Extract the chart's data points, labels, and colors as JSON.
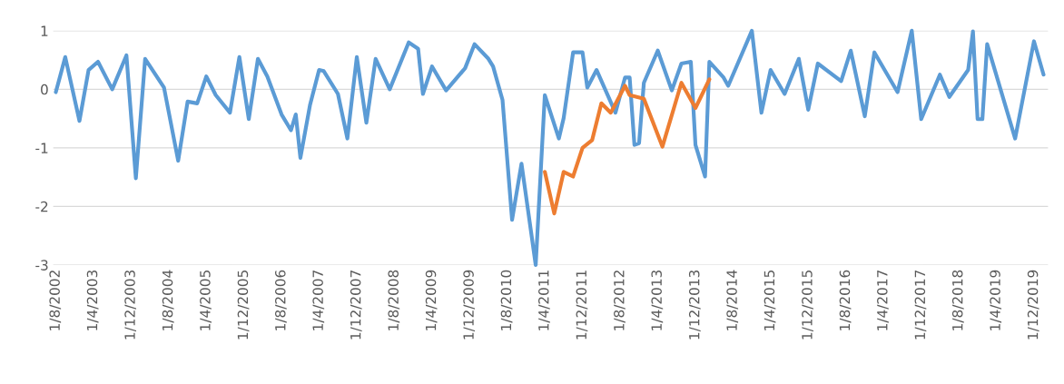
{
  "chart_data": {
    "type": "line",
    "series": [
      {
        "color": "#5b9bd5",
        "x": [
          "2002-08",
          "2002-10",
          "2003-01",
          "2003-03",
          "2003-05",
          "2003-08",
          "2003-11",
          "2004-01",
          "2004-03",
          "2004-07",
          "2004-10",
          "2004-12",
          "2005-02",
          "2005-04",
          "2005-06",
          "2005-09",
          "2005-11",
          "2006-01",
          "2006-03",
          "2006-05",
          "2006-08",
          "2006-10",
          "2006-11",
          "2006-12",
          "2007-02",
          "2007-04",
          "2007-05",
          "2007-08",
          "2007-10",
          "2007-12",
          "2008-02",
          "2008-04",
          "2008-07",
          "2008-11",
          "2009-01",
          "2009-02",
          "2009-04",
          "2009-07",
          "2009-11",
          "2010-01",
          "2010-04",
          "2010-05",
          "2010-07",
          "2010-09",
          "2010-11",
          "2011-02",
          "2011-04",
          "2011-07",
          "2011-08",
          "2011-10",
          "2011-12",
          "2012-01",
          "2012-03",
          "2012-07",
          "2012-09",
          "2012-10",
          "2012-11",
          "2012-12",
          "2013-01",
          "2013-04",
          "2013-07",
          "2013-09",
          "2013-11",
          "2013-12",
          "2014-02",
          "2014-03",
          "2014-06",
          "2014-07",
          "2014-12",
          "2015-02",
          "2015-04",
          "2015-07",
          "2015-10",
          "2015-12",
          "2016-02",
          "2016-07",
          "2016-09",
          "2016-12",
          "2017-02",
          "2017-07",
          "2017-10",
          "2017-12",
          "2018-04",
          "2018-06",
          "2018-10",
          "2018-11",
          "2018-12",
          "2019-01",
          "2019-02",
          "2019-08",
          "2019-12",
          "2020-02"
        ],
        "values": [
          -0.05,
          0.55,
          -0.54,
          0.33,
          0.47,
          0.0,
          0.58,
          -1.52,
          0.52,
          0.03,
          -1.22,
          -0.21,
          -0.24,
          0.22,
          -0.1,
          -0.4,
          0.55,
          -0.51,
          0.52,
          0.22,
          -0.43,
          -0.7,
          -0.43,
          -1.17,
          -0.27,
          0.33,
          0.31,
          -0.08,
          -0.84,
          0.55,
          -0.57,
          0.52,
          0.0,
          0.8,
          0.69,
          -0.08,
          0.39,
          -0.02,
          0.36,
          0.77,
          0.52,
          0.39,
          -0.18,
          -2.23,
          -1.27,
          -3.0,
          -0.1,
          -0.84,
          -0.49,
          0.63,
          0.63,
          0.03,
          0.33,
          -0.4,
          0.2,
          0.2,
          -0.95,
          -0.92,
          0.11,
          0.66,
          -0.02,
          0.44,
          0.47,
          -0.95,
          -1.49,
          0.47,
          0.2,
          0.06,
          1.0,
          -0.4,
          0.33,
          -0.08,
          0.52,
          -0.35,
          0.44,
          0.14,
          0.66,
          -0.46,
          0.63,
          -0.05,
          1.0,
          -0.51,
          0.25,
          -0.13,
          0.33,
          0.99,
          -0.51,
          -0.51,
          0.77,
          -0.84,
          0.82,
          0.25
        ]
      },
      {
        "color": "#ed7d31",
        "x": [
          "2011-04",
          "2011-06",
          "2011-08",
          "2011-10",
          "2011-12",
          "2012-02",
          "2012-04",
          "2012-06",
          "2012-09",
          "2012-10",
          "2013-01",
          "2013-05",
          "2013-09",
          "2013-12",
          "2014-03"
        ],
        "values": [
          -1.41,
          -2.12,
          -1.41,
          -1.49,
          -1.0,
          -0.87,
          -0.24,
          -0.4,
          0.06,
          -0.1,
          -0.16,
          -0.98,
          0.11,
          -0.32,
          0.17
        ]
      }
    ],
    "xlim": [
      "2002-07-15",
      "2020-03-01"
    ],
    "xticks": [
      {
        "value": "2002-08",
        "label": "1/8/2002"
      },
      {
        "value": "2003-04",
        "label": "1/4/2003"
      },
      {
        "value": "2003-12",
        "label": "1/12/2003"
      },
      {
        "value": "2004-08",
        "label": "1/8/2004"
      },
      {
        "value": "2005-04",
        "label": "1/4/2005"
      },
      {
        "value": "2005-12",
        "label": "1/12/2005"
      },
      {
        "value": "2006-08",
        "label": "1/8/2006"
      },
      {
        "value": "2007-04",
        "label": "1/4/2007"
      },
      {
        "value": "2007-12",
        "label": "1/12/2007"
      },
      {
        "value": "2008-08",
        "label": "1/8/2008"
      },
      {
        "value": "2009-04",
        "label": "1/4/2009"
      },
      {
        "value": "2009-12",
        "label": "1/12/2009"
      },
      {
        "value": "2010-08",
        "label": "1/8/2010"
      },
      {
        "value": "2011-04",
        "label": "1/4/2011"
      },
      {
        "value": "2011-12",
        "label": "1/12/2011"
      },
      {
        "value": "2012-08",
        "label": "1/8/2012"
      },
      {
        "value": "2013-04",
        "label": "1/4/2013"
      },
      {
        "value": "2013-12",
        "label": "1/12/2013"
      },
      {
        "value": "2014-08",
        "label": "1/8/2014"
      },
      {
        "value": "2015-04",
        "label": "1/4/2015"
      },
      {
        "value": "2015-12",
        "label": "1/12/2015"
      },
      {
        "value": "2016-08",
        "label": "1/8/2016"
      },
      {
        "value": "2017-04",
        "label": "1/4/2017"
      },
      {
        "value": "2017-12",
        "label": "1/12/2017"
      },
      {
        "value": "2018-08",
        "label": "1/8/2018"
      },
      {
        "value": "2019-04",
        "label": "1/4/2019"
      },
      {
        "value": "2019-12",
        "label": "1/12/2019"
      }
    ],
    "ylim": [
      -3,
      1
    ],
    "yticks": [
      -3,
      -2,
      -1,
      0,
      1
    ],
    "grid": "y",
    "line_style": "solid",
    "marker": "none"
  }
}
